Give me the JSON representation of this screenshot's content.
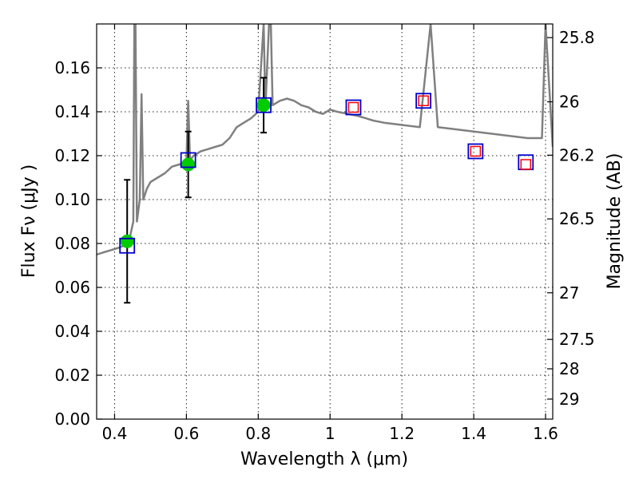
{
  "chart_data": {
    "type": "scatter",
    "xlabel": "Wavelength  λ (μm)",
    "ylabel": "Flux  Fν  (μJy )",
    "y2label": "Magnitude (AB)",
    "xlim": [
      0.35,
      1.62
    ],
    "ylim": [
      0.0,
      0.18
    ],
    "grid": true,
    "x_ticks": [
      0.4,
      0.6,
      0.8,
      1.0,
      1.2,
      1.4,
      1.6
    ],
    "x_tick_labels": [
      "0.4",
      "0.6",
      "0.8",
      "1",
      "1.2",
      "1.4",
      "1.6"
    ],
    "y_ticks": [
      0.0,
      0.02,
      0.04,
      0.06,
      0.08,
      0.1,
      0.12,
      0.14,
      0.16
    ],
    "y_tick_labels": [
      "0.00",
      "0.02",
      "0.04",
      "0.06",
      "0.08",
      "0.10",
      "0.12",
      "0.14",
      "0.16"
    ],
    "y2_ticks": [
      25.8,
      26,
      26.2,
      26.5,
      27,
      27.5,
      28,
      29
    ],
    "y2_tick_labels": [
      "25.8",
      "26",
      "26.2",
      "26.5",
      "27",
      "27.5",
      "28",
      "29"
    ],
    "series": [
      {
        "kind": "line",
        "color": "#808080",
        "x": [
          0.35,
          0.37,
          0.39,
          0.41,
          0.425,
          0.44,
          0.452,
          0.455,
          0.458,
          0.462,
          0.47,
          0.475,
          0.48,
          0.49,
          0.5,
          0.52,
          0.54,
          0.56,
          0.58,
          0.6,
          0.605,
          0.61,
          0.62,
          0.64,
          0.66,
          0.68,
          0.7,
          0.72,
          0.74,
          0.76,
          0.78,
          0.8,
          0.815,
          0.82,
          0.83,
          0.835,
          0.84,
          0.86,
          0.88,
          0.9,
          0.92,
          0.94,
          0.96,
          0.98,
          1.0,
          1.02,
          1.05,
          1.08,
          1.1,
          1.12,
          1.15,
          1.2,
          1.25,
          1.28,
          1.3,
          1.35,
          1.4,
          1.45,
          1.5,
          1.55,
          1.59,
          1.6,
          1.62
        ],
        "y": [
          0.075,
          0.076,
          0.077,
          0.078,
          0.079,
          0.081,
          0.09,
          0.18,
          0.18,
          0.09,
          0.1,
          0.148,
          0.1,
          0.105,
          0.108,
          0.11,
          0.112,
          0.115,
          0.116,
          0.117,
          0.145,
          0.118,
          0.12,
          0.122,
          0.123,
          0.124,
          0.125,
          0.128,
          0.133,
          0.135,
          0.137,
          0.14,
          0.18,
          0.142,
          0.18,
          0.18,
          0.143,
          0.145,
          0.146,
          0.145,
          0.143,
          0.142,
          0.14,
          0.139,
          0.141,
          0.14,
          0.139,
          0.138,
          0.137,
          0.136,
          0.135,
          0.134,
          0.133,
          0.18,
          0.133,
          0.132,
          0.131,
          0.13,
          0.129,
          0.128,
          0.128,
          0.18,
          0.124
        ]
      },
      {
        "kind": "points",
        "name": "",
        "marker": "circle",
        "color": "#00cc00",
        "x": [
          0.435,
          0.605,
          0.815
        ],
        "y": [
          0.081,
          0.116,
          0.143
        ],
        "yerr": [
          0.028,
          0.015,
          0.0125
        ]
      },
      {
        "kind": "points",
        "marker": "open-square",
        "color": "#0000cc",
        "x": [
          0.435,
          0.605,
          0.815,
          1.065,
          1.26,
          1.405,
          1.545
        ],
        "y": [
          0.079,
          0.118,
          0.143,
          0.142,
          0.145,
          0.122,
          0.117
        ]
      },
      {
        "kind": "points",
        "marker": "small-open-square",
        "color": "#ff0000",
        "x": [
          1.065,
          1.26,
          1.405,
          1.545
        ],
        "y": [
          0.142,
          0.145,
          0.122,
          0.116
        ]
      }
    ]
  }
}
